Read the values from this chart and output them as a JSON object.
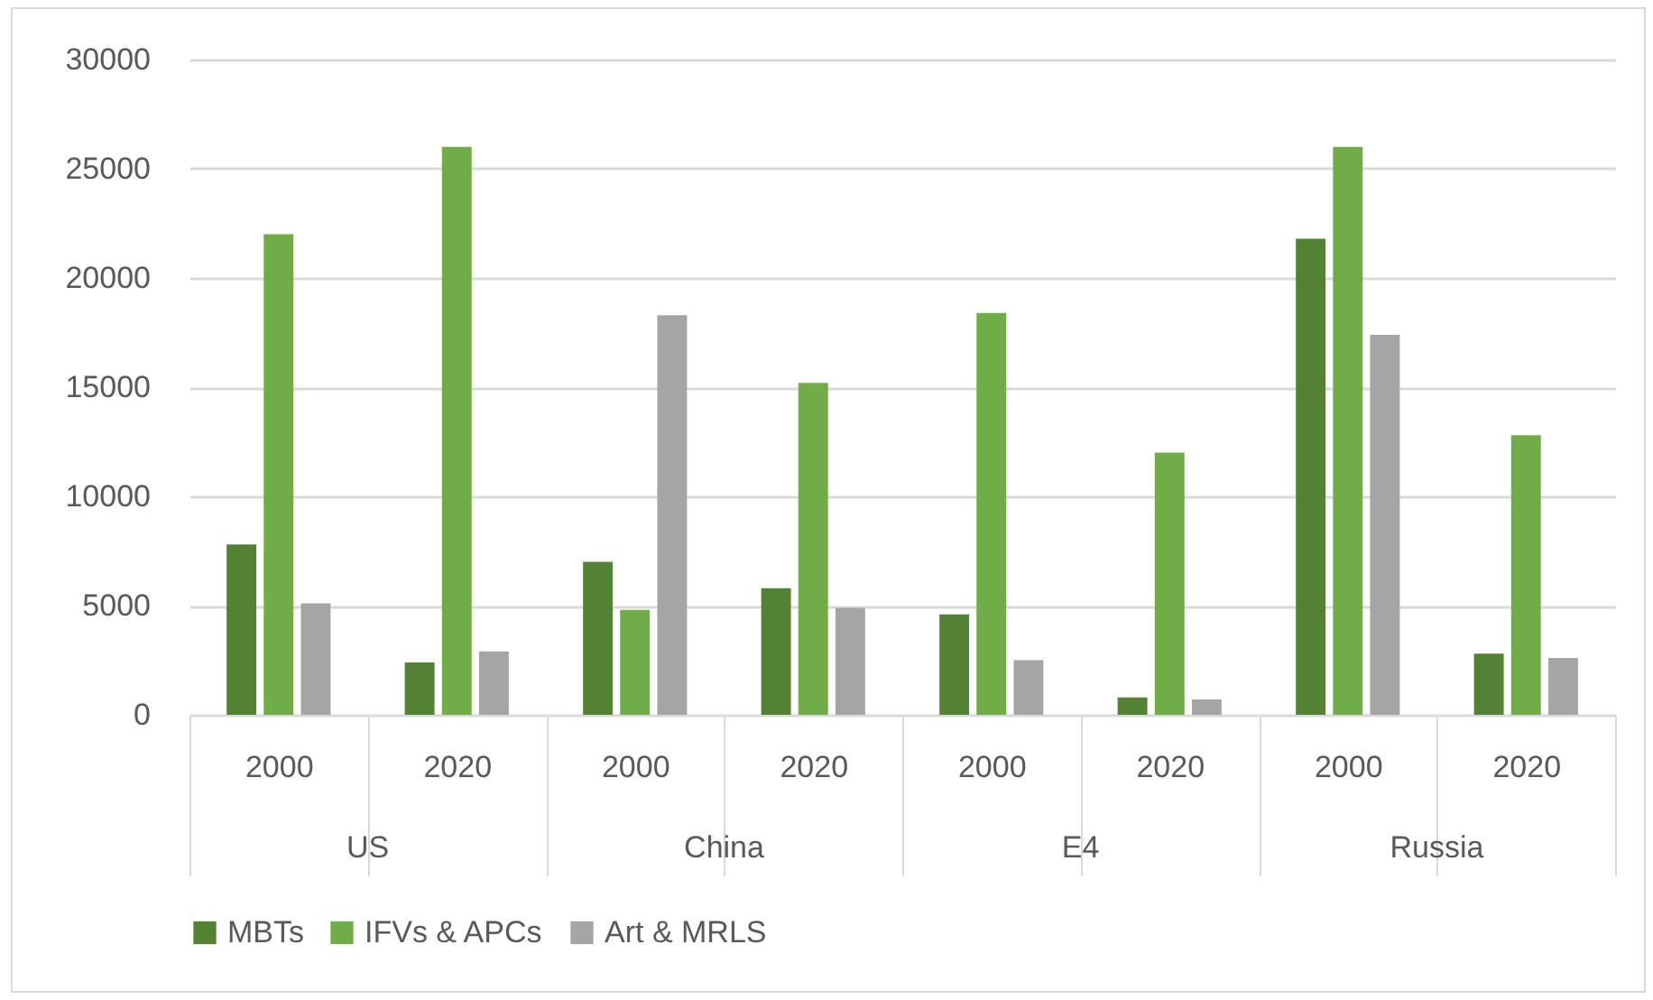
{
  "chart_data": {
    "type": "bar",
    "categories": [
      "2000",
      "2020",
      "2000",
      "2020",
      "2000",
      "2020",
      "2000",
      "2020"
    ],
    "annotations": [
      "US",
      "China",
      "E4",
      "Russia"
    ],
    "series": [
      {
        "name": "MBTs",
        "color": "#548235",
        "values": [
          7800,
          2400,
          7000,
          5800,
          4600,
          800,
          21800,
          2800
        ]
      },
      {
        "name": "IFVs & APCs",
        "color": "#70ad47",
        "values": [
          22000,
          26000,
          4800,
          15200,
          18400,
          12000,
          26000,
          12800
        ]
      },
      {
        "name": "Art & MRLS",
        "color": "#a5a5a5",
        "values": [
          5100,
          2900,
          18300,
          4900,
          2500,
          700,
          17400,
          2600
        ]
      }
    ],
    "ylim": [
      0,
      30000
    ],
    "yticks": [
      0,
      5000,
      10000,
      15000,
      20000,
      25000,
      30000
    ],
    "grid": "y",
    "legend": "bottom"
  }
}
